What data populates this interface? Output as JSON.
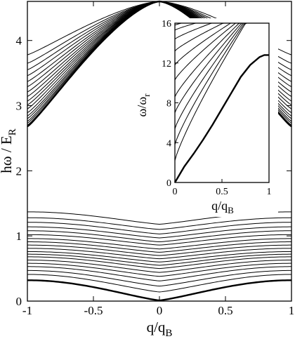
{
  "chart_data": [
    {
      "type": "line",
      "xlabel": "q/q",
      "xlabel_sub": "B",
      "ylabel": "hω / E",
      "ylabel_sub": "R",
      "xlim": [
        -1,
        1
      ],
      "ylim": [
        0,
        4.6
      ],
      "x_ticks": [
        -1,
        -0.5,
        0,
        0.5,
        1
      ],
      "x_tick_labels": [
        "-1",
        "-0.5",
        "0",
        "0.5",
        "1"
      ],
      "y_ticks": [
        0,
        1,
        2,
        3,
        4
      ],
      "y_tick_labels": [
        "0",
        "1",
        "2",
        "3",
        "4"
      ],
      "grid": false,
      "legend": "none",
      "bands": {
        "lower": {
          "level_count": 19,
          "edge_values": [
            0.32,
            0.41,
            0.47,
            0.53,
            0.58,
            0.63,
            0.68,
            0.72,
            0.76,
            0.81,
            0.86,
            0.91,
            0.96,
            1.02,
            1.08,
            1.14,
            1.21,
            1.28,
            1.37
          ],
          "center_values": [
            0.01,
            0.14,
            0.23,
            0.31,
            0.38,
            0.44,
            0.5,
            0.55,
            0.6,
            0.65,
            0.7,
            0.75,
            0.8,
            0.86,
            0.91,
            0.97,
            1.03,
            1.1,
            1.18
          ],
          "bold_index": 0
        },
        "upper": {
          "level_count": 18,
          "edge_values": [
            2.68,
            2.7,
            2.73,
            2.76,
            2.8,
            2.84,
            2.89,
            2.95,
            3.01,
            3.07,
            3.14,
            3.21,
            3.29,
            3.37,
            3.46,
            3.55,
            3.65,
            3.78
          ],
          "peak_value": 4.6,
          "bold_index": 0
        }
      }
    },
    {
      "type": "line",
      "xlabel": "q/q",
      "xlabel_sub": "B",
      "ylabel": "ω/ω",
      "ylabel_sub": "r",
      "xlim": [
        0,
        1
      ],
      "ylim": [
        0,
        16
      ],
      "x_ticks": [
        0,
        0.5,
        1
      ],
      "x_tick_labels": [
        "0",
        "0.5",
        "1"
      ],
      "y_ticks": [
        0,
        4,
        8,
        12,
        16
      ],
      "y_tick_labels": [
        "0",
        "4",
        "8",
        "12",
        "16"
      ],
      "grid": false,
      "legend": "none",
      "lowest_band": {
        "x": [
          0,
          0.1,
          0.2,
          0.3,
          0.4,
          0.5,
          0.6,
          0.7,
          0.8,
          0.9,
          0.95,
          1.0
        ],
        "y": [
          0,
          1.6,
          2.9,
          4.3,
          5.8,
          7.4,
          9.0,
          10.6,
          11.8,
          12.6,
          12.8,
          12.8
        ]
      },
      "upper_band_starts": [
        2.2,
        3.8,
        5.4,
        7.0,
        8.6,
        10.3,
        11.8,
        13.2,
        14.4,
        15.3,
        15.8
      ]
    }
  ]
}
